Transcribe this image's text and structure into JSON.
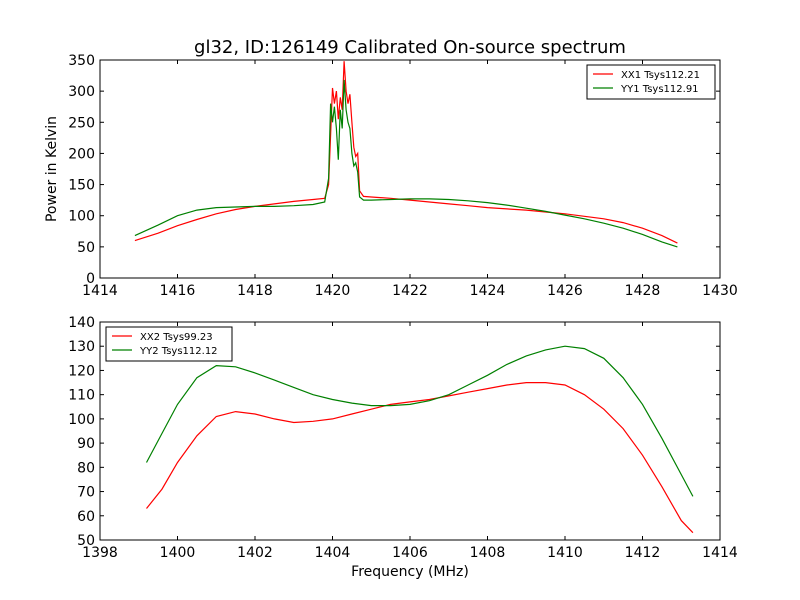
{
  "figure_title": "gl32, ID:126149 Calibrated On-source spectrum",
  "chart_data": [
    {
      "type": "line",
      "title": "gl32, ID:126149 Calibrated On-source spectrum",
      "xlabel": "",
      "ylabel": "Power in Kelvin",
      "xlim": [
        1414,
        1430
      ],
      "ylim": [
        0,
        350
      ],
      "xticks": [
        "1414",
        "1416",
        "1418",
        "1420",
        "1422",
        "1424",
        "1426",
        "1428",
        "1430"
      ],
      "yticks": [
        "0",
        "50",
        "100",
        "150",
        "200",
        "250",
        "300",
        "350"
      ],
      "grid": false,
      "legend_position": "top-right",
      "series": [
        {
          "name": "XX1 Tsys112.21",
          "color": "#ff0000",
          "points": [
            [
              1414.9,
              60
            ],
            [
              1415.5,
              72
            ],
            [
              1416,
              84
            ],
            [
              1416.5,
              94
            ],
            [
              1417,
              103
            ],
            [
              1417.5,
              110
            ],
            [
              1418,
              115
            ],
            [
              1418.5,
              119
            ],
            [
              1419,
              123
            ],
            [
              1419.5,
              126
            ],
            [
              1419.8,
              128
            ],
            [
              1419.9,
              150
            ],
            [
              1420.0,
              305
            ],
            [
              1420.05,
              280
            ],
            [
              1420.1,
              300
            ],
            [
              1420.15,
              255
            ],
            [
              1420.2,
              290
            ],
            [
              1420.25,
              270
            ],
            [
              1420.3,
              348
            ],
            [
              1420.35,
              300
            ],
            [
              1420.4,
              280
            ],
            [
              1420.45,
              295
            ],
            [
              1420.5,
              250
            ],
            [
              1420.55,
              210
            ],
            [
              1420.6,
              195
            ],
            [
              1420.65,
              200
            ],
            [
              1420.7,
              140
            ],
            [
              1420.8,
              131
            ],
            [
              1421,
              130
            ],
            [
              1421.5,
              128
            ],
            [
              1422,
              125
            ],
            [
              1422.5,
              122
            ],
            [
              1423,
              119
            ],
            [
              1423.5,
              116
            ],
            [
              1424,
              113
            ],
            [
              1424.5,
              111
            ],
            [
              1425,
              109
            ],
            [
              1425.5,
              106
            ],
            [
              1426,
              103
            ],
            [
              1426.5,
              99
            ],
            [
              1427,
              95
            ],
            [
              1427.5,
              89
            ],
            [
              1428,
              80
            ],
            [
              1428.5,
              68
            ],
            [
              1428.9,
              56
            ]
          ]
        },
        {
          "name": "YY1 Tsys112.91",
          "color": "#008000",
          "points": [
            [
              1414.9,
              68
            ],
            [
              1415.5,
              85
            ],
            [
              1416,
              100
            ],
            [
              1416.5,
              109
            ],
            [
              1417,
              113
            ],
            [
              1417.5,
              114
            ],
            [
              1418,
              115
            ],
            [
              1418.5,
              115
            ],
            [
              1419,
              116
            ],
            [
              1419.5,
              118
            ],
            [
              1419.8,
              122
            ],
            [
              1419.9,
              160
            ],
            [
              1419.95,
              280
            ],
            [
              1420.0,
              250
            ],
            [
              1420.05,
              275
            ],
            [
              1420.1,
              240
            ],
            [
              1420.15,
              190
            ],
            [
              1420.2,
              270
            ],
            [
              1420.25,
              240
            ],
            [
              1420.3,
              318
            ],
            [
              1420.35,
              270
            ],
            [
              1420.4,
              250
            ],
            [
              1420.45,
              240
            ],
            [
              1420.5,
              200
            ],
            [
              1420.55,
              180
            ],
            [
              1420.6,
              185
            ],
            [
              1420.65,
              170
            ],
            [
              1420.7,
              130
            ],
            [
              1420.8,
              125
            ],
            [
              1421,
              125
            ],
            [
              1421.5,
              126
            ],
            [
              1422,
              127
            ],
            [
              1422.5,
              127
            ],
            [
              1423,
              126
            ],
            [
              1423.5,
              124
            ],
            [
              1424,
              121
            ],
            [
              1424.5,
              117
            ],
            [
              1425,
              112
            ],
            [
              1425.5,
              107
            ],
            [
              1426,
              101
            ],
            [
              1426.5,
              95
            ],
            [
              1427,
              88
            ],
            [
              1427.5,
              80
            ],
            [
              1428,
              70
            ],
            [
              1428.5,
              58
            ],
            [
              1428.9,
              50
            ]
          ]
        }
      ]
    },
    {
      "type": "line",
      "title": "",
      "xlabel": "Frequency (MHz)",
      "ylabel": "",
      "xlim": [
        1398,
        1414
      ],
      "ylim": [
        50,
        140
      ],
      "xticks": [
        "1398",
        "1400",
        "1402",
        "1404",
        "1406",
        "1408",
        "1410",
        "1412",
        "1414"
      ],
      "yticks": [
        "50",
        "60",
        "70",
        "80",
        "90",
        "100",
        "110",
        "120",
        "130",
        "140"
      ],
      "grid": false,
      "legend_position": "top-left",
      "series": [
        {
          "name": "XX2 Tsys99.23",
          "color": "#ff0000",
          "points": [
            [
              1399.2,
              63
            ],
            [
              1399.6,
              71
            ],
            [
              1400,
              82
            ],
            [
              1400.5,
              93
            ],
            [
              1401,
              101
            ],
            [
              1401.5,
              103
            ],
            [
              1402,
              102
            ],
            [
              1402.5,
              100
            ],
            [
              1403,
              98.5
            ],
            [
              1403.5,
              99
            ],
            [
              1404,
              100
            ],
            [
              1404.5,
              102
            ],
            [
              1405,
              104
            ],
            [
              1405.5,
              106
            ],
            [
              1406,
              107
            ],
            [
              1406.5,
              108
            ],
            [
              1407,
              109.5
            ],
            [
              1407.5,
              111
            ],
            [
              1408,
              112.5
            ],
            [
              1408.5,
              114
            ],
            [
              1409,
              115
            ],
            [
              1409.5,
              115
            ],
            [
              1410,
              114
            ],
            [
              1410.5,
              110
            ],
            [
              1411,
              104
            ],
            [
              1411.5,
              96
            ],
            [
              1412,
              85
            ],
            [
              1412.5,
              72
            ],
            [
              1413,
              58
            ],
            [
              1413.3,
              53
            ]
          ]
        },
        {
          "name": "YY2 Tsys112.12",
          "color": "#008000",
          "points": [
            [
              1399.2,
              82
            ],
            [
              1399.6,
              94
            ],
            [
              1400,
              106
            ],
            [
              1400.5,
              117
            ],
            [
              1401,
              122
            ],
            [
              1401.5,
              121.5
            ],
            [
              1402,
              119
            ],
            [
              1402.5,
              116
            ],
            [
              1403,
              113
            ],
            [
              1403.5,
              110
            ],
            [
              1404,
              108
            ],
            [
              1404.5,
              106.5
            ],
            [
              1405,
              105.5
            ],
            [
              1405.5,
              105.5
            ],
            [
              1406,
              106
            ],
            [
              1406.5,
              107.5
            ],
            [
              1407,
              110
            ],
            [
              1407.5,
              114
            ],
            [
              1408,
              118
            ],
            [
              1408.5,
              122.5
            ],
            [
              1409,
              126
            ],
            [
              1409.5,
              128.5
            ],
            [
              1410,
              130
            ],
            [
              1410.5,
              129
            ],
            [
              1411,
              125
            ],
            [
              1411.5,
              117
            ],
            [
              1412,
              106
            ],
            [
              1412.5,
              92
            ],
            [
              1413,
              77
            ],
            [
              1413.3,
              68
            ]
          ]
        }
      ]
    }
  ]
}
